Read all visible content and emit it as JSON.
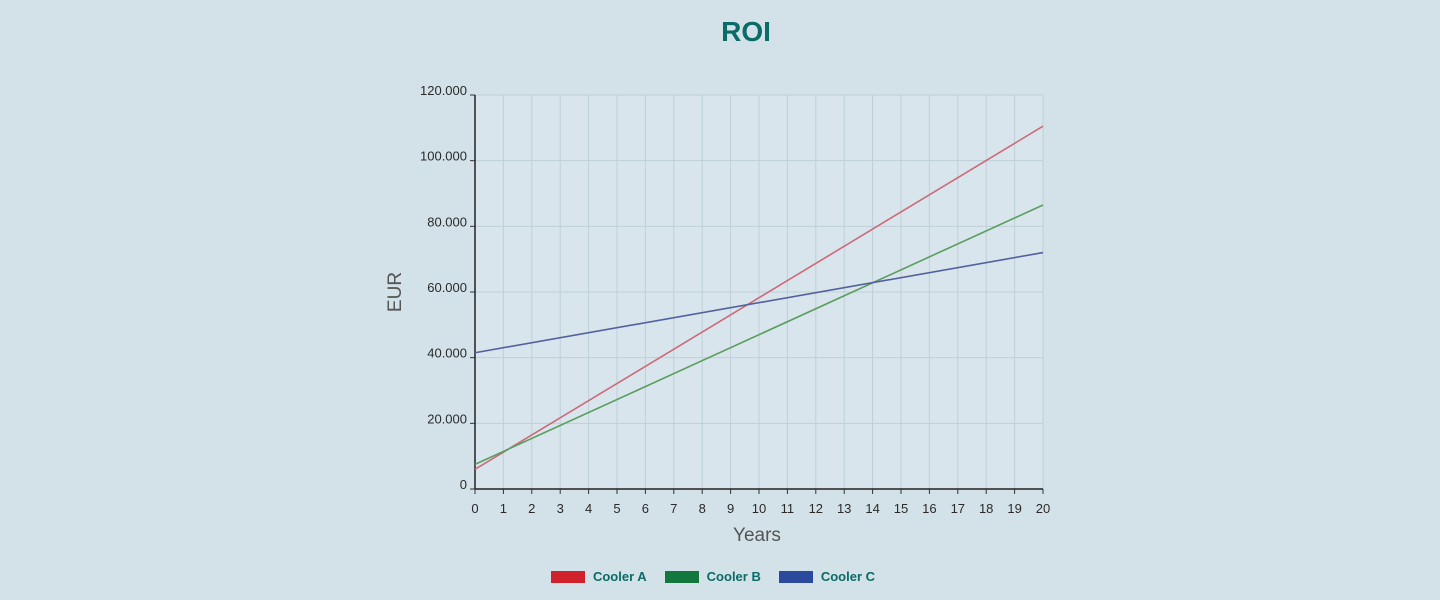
{
  "chart_data": {
    "type": "line",
    "title": "ROI",
    "xlabel": "Years",
    "ylabel": "EUR",
    "x": [
      0,
      20
    ],
    "xlim": [
      0,
      20
    ],
    "ylim": [
      0,
      120000
    ],
    "x_ticks": [
      "0",
      "1",
      "2",
      "3",
      "4",
      "5",
      "6",
      "7",
      "8",
      "9",
      "10",
      "11",
      "12",
      "13",
      "14",
      "15",
      "16",
      "17",
      "18",
      "19",
      "20"
    ],
    "y_ticks": [
      {
        "value": 0,
        "label": "0"
      },
      {
        "value": 20000,
        "label": "20.000"
      },
      {
        "value": 40000,
        "label": "40.000"
      },
      {
        "value": 60000,
        "label": "60.000"
      },
      {
        "value": 80000,
        "label": "80.000"
      },
      {
        "value": 100000,
        "label": "100.000"
      },
      {
        "value": 120000,
        "label": "120.000"
      }
    ],
    "grid": true,
    "legend_position": "bottom",
    "series": [
      {
        "name": "Cooler A",
        "color": "#d0222c",
        "line_color": "#cc6a7a",
        "values": [
          6000,
          110500
        ]
      },
      {
        "name": "Cooler B",
        "color": "#13783d",
        "line_color": "#5a9e5e",
        "values": [
          7500,
          86500
        ]
      },
      {
        "name": "Cooler C",
        "color": "#2b4a9e",
        "line_color": "#5360a0",
        "values": [
          41500,
          72000
        ]
      }
    ]
  }
}
